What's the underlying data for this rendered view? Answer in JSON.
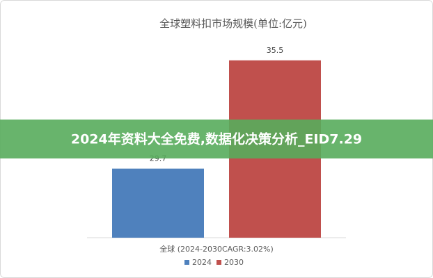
{
  "chart_data": {
    "type": "bar",
    "title": "全球塑料扣市场规模(单位:亿元)",
    "categories": [
      "全球 (2024-2030CAGR:3.02%)"
    ],
    "series": [
      {
        "name": "2024",
        "color": "#4f81bd",
        "values": [
          29.7
        ]
      },
      {
        "name": "2030",
        "color": "#c0504d",
        "values": [
          35.5
        ]
      }
    ],
    "ylim": [
      26,
      36.5
    ],
    "legend": "bottom"
  },
  "banner": {
    "text": "2024年资料大全免费,数据化决策分析_EID7.29"
  }
}
